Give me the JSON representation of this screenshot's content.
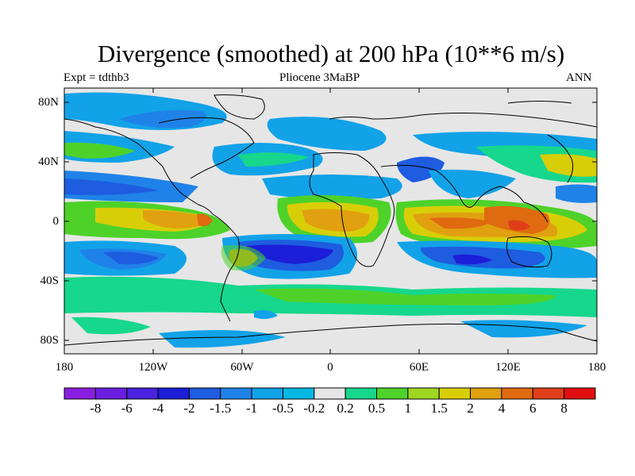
{
  "title": "Divergence (smoothed) at 200 hPa (10**6 m/s)",
  "experiment": "Expt = tdthb3",
  "period": "Pliocene   3MaBP",
  "season": "ANN",
  "lat_labels": [
    "80N",
    "40N",
    "0",
    "40S",
    "80S"
  ],
  "lon_labels": [
    "180",
    "120W",
    "60W",
    "0",
    "60E",
    "120E",
    "180"
  ],
  "colorbar": {
    "labels": [
      "-8",
      "-6",
      "-4",
      "-2",
      "-1.5",
      "-1",
      "-0.5",
      "-0.2",
      "0.2",
      "0.5",
      "1",
      "1.5",
      "2",
      "4",
      "6",
      "8"
    ],
    "colors": [
      "#8a1ee0",
      "#6a1ee0",
      "#4a22e0",
      "#1c1ed8",
      "#1e5ce0",
      "#1f82e8",
      "#12a2e8",
      "#05b8e2",
      "#e6e6e6",
      "#16d78c",
      "#4ed22a",
      "#9ed622",
      "#d8ce08",
      "#e0a010",
      "#e06a10",
      "#e03e18",
      "#e20e10"
    ]
  }
}
